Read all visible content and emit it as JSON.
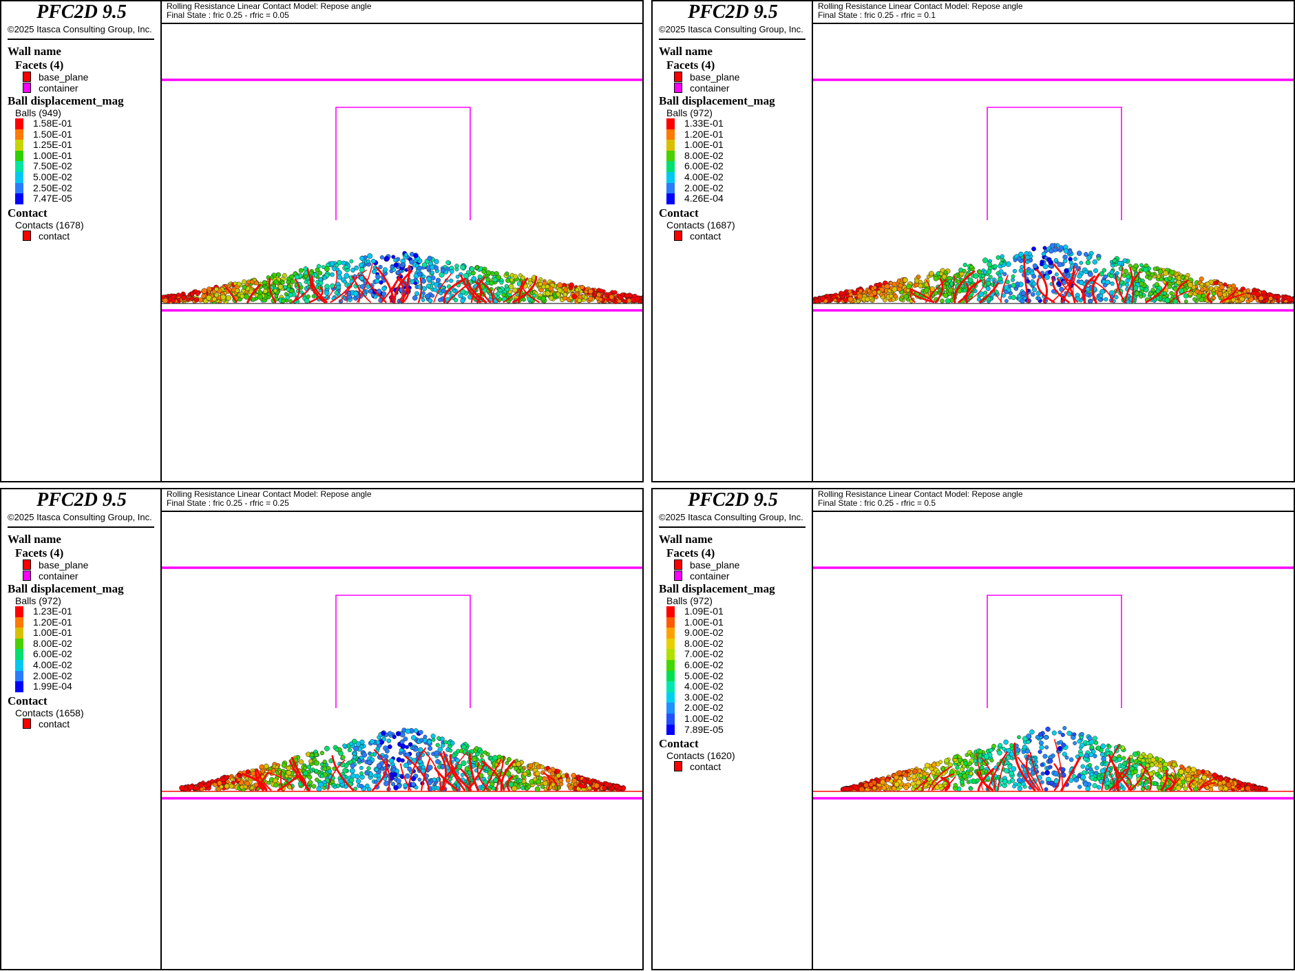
{
  "colors": {
    "wall": "#ff00ff",
    "base_plane": "#ff0000",
    "contact": "#ff0000",
    "frame": "#000000"
  },
  "panels": [
    {
      "brand": "PFC2D 9.5",
      "copyright": "©2025 Itasca Consulting Group, Inc.",
      "title_line1": "Rolling Resistance Linear Contact Model: Repose angle",
      "title_line2": "Final State : fric 0.25 - rfric = 0.05",
      "wall_header": "Wall name",
      "facets_header": "Facets (4)",
      "facets": [
        {
          "label": "base_plane",
          "color": "#ff0000"
        },
        {
          "label": "container",
          "color": "#ff00ff"
        }
      ],
      "disp_header": "Ball displacement_mag",
      "balls_label": "Balls (949)",
      "colorbar": [
        {
          "label": "1.58E-01",
          "color": "#ff0000"
        },
        {
          "label": "1.50E-01",
          "color": "#ff7a00"
        },
        {
          "label": "1.25E-01",
          "color": "#c8d400"
        },
        {
          "label": "1.00E-01",
          "color": "#2fd000"
        },
        {
          "label": "7.50E-02",
          "color": "#00e6a0"
        },
        {
          "label": "5.00E-02",
          "color": "#00c8f0"
        },
        {
          "label": "2.50E-02",
          "color": "#2a7cff"
        },
        {
          "label": "7.47E-05",
          "color": "#0000ff"
        }
      ],
      "contact_header": "Contact",
      "contacts_label": "Contacts (1678)",
      "contact_item": "contact",
      "pile": {
        "left": 0.0,
        "right": 1.0,
        "peak_x": 0.48,
        "peak_h": 78,
        "edge_h": 10,
        "red_base": false
      }
    },
    {
      "brand": "PFC2D 9.5",
      "copyright": "©2025 Itasca Consulting Group, Inc.",
      "title_line1": "Rolling Resistance Linear Contact Model: Repose angle",
      "title_line2": "Final State : fric 0.25 - rfric = 0.1",
      "wall_header": "Wall name",
      "facets_header": "Facets (4)",
      "facets": [
        {
          "label": "base_plane",
          "color": "#ff0000"
        },
        {
          "label": "container",
          "color": "#ff00ff"
        }
      ],
      "disp_header": "Ball displacement_mag",
      "balls_label": "Balls (972)",
      "colorbar": [
        {
          "label": "1.33E-01",
          "color": "#ff0000"
        },
        {
          "label": "1.20E-01",
          "color": "#ff7a00"
        },
        {
          "label": "1.00E-01",
          "color": "#d8c000"
        },
        {
          "label": "8.00E-02",
          "color": "#48d000"
        },
        {
          "label": "6.00E-02",
          "color": "#00e070"
        },
        {
          "label": "4.00E-02",
          "color": "#00c8f0"
        },
        {
          "label": "2.00E-02",
          "color": "#2a7cff"
        },
        {
          "label": "4.26E-04",
          "color": "#0000ff"
        }
      ],
      "contact_header": "Contact",
      "contacts_label": "Contacts (1687)",
      "contact_item": "contact",
      "pile": {
        "left": 0.0,
        "right": 1.0,
        "peak_x": 0.5,
        "peak_h": 88,
        "edge_h": 8,
        "red_base": false
      }
    },
    {
      "brand": "PFC2D 9.5",
      "copyright": "©2025 Itasca Consulting Group, Inc.",
      "title_line1": "Rolling Resistance Linear Contact Model: Repose angle",
      "title_line2": "Final State : fric 0.25 - rfric = 0.25",
      "wall_header": "Wall name",
      "facets_header": "Facets (4)",
      "facets": [
        {
          "label": "base_plane",
          "color": "#ff0000"
        },
        {
          "label": "container",
          "color": "#ff00ff"
        }
      ],
      "disp_header": "Ball displacement_mag",
      "balls_label": "Balls (972)",
      "colorbar": [
        {
          "label": "1.23E-01",
          "color": "#ff0000"
        },
        {
          "label": "1.20E-01",
          "color": "#ff7a00"
        },
        {
          "label": "1.00E-01",
          "color": "#d8c000"
        },
        {
          "label": "8.00E-02",
          "color": "#48d000"
        },
        {
          "label": "6.00E-02",
          "color": "#00e070"
        },
        {
          "label": "4.00E-02",
          "color": "#00c8f0"
        },
        {
          "label": "2.00E-02",
          "color": "#2a7cff"
        },
        {
          "label": "1.99E-04",
          "color": "#0000ff"
        }
      ],
      "contact_header": "Contact",
      "contacts_label": "Contacts (1658)",
      "contact_item": "contact",
      "pile": {
        "left": 0.04,
        "right": 0.96,
        "peak_x": 0.5,
        "peak_h": 95,
        "edge_h": 6,
        "red_base": true
      }
    },
    {
      "brand": "PFC2D 9.5",
      "copyright": "©2025 Itasca Consulting Group, Inc.",
      "title_line1": "Rolling Resistance Linear Contact Model: Repose angle",
      "title_line2": "Final State : fric 0.25 - rfric = 0.5",
      "wall_header": "Wall name",
      "facets_header": "Facets (4)",
      "facets": [
        {
          "label": "base_plane",
          "color": "#ff0000"
        },
        {
          "label": "container",
          "color": "#ff00ff"
        }
      ],
      "disp_header": "Ball displacement_mag",
      "balls_label": "Balls (972)",
      "colorbar": [
        {
          "label": "1.09E-01",
          "color": "#ff0000"
        },
        {
          "label": "1.00E-01",
          "color": "#ff5a00"
        },
        {
          "label": "9.00E-02",
          "color": "#ffa000"
        },
        {
          "label": "8.00E-02",
          "color": "#e8d000"
        },
        {
          "label": "7.00E-02",
          "color": "#b0e000"
        },
        {
          "label": "6.00E-02",
          "color": "#40d800"
        },
        {
          "label": "5.00E-02",
          "color": "#00e050"
        },
        {
          "label": "4.00E-02",
          "color": "#00e8b0"
        },
        {
          "label": "3.00E-02",
          "color": "#00d0f0"
        },
        {
          "label": "2.00E-02",
          "color": "#1e90ff"
        },
        {
          "label": "1.00E-02",
          "color": "#2050ff"
        },
        {
          "label": "7.89E-05",
          "color": "#0000ff"
        }
      ],
      "contact_header": "Contact",
      "contacts_label": "Contacts (1620)",
      "contact_item": "contact",
      "pile": {
        "left": 0.06,
        "right": 0.94,
        "peak_x": 0.5,
        "peak_h": 98,
        "edge_h": 4,
        "red_base": true
      }
    }
  ]
}
